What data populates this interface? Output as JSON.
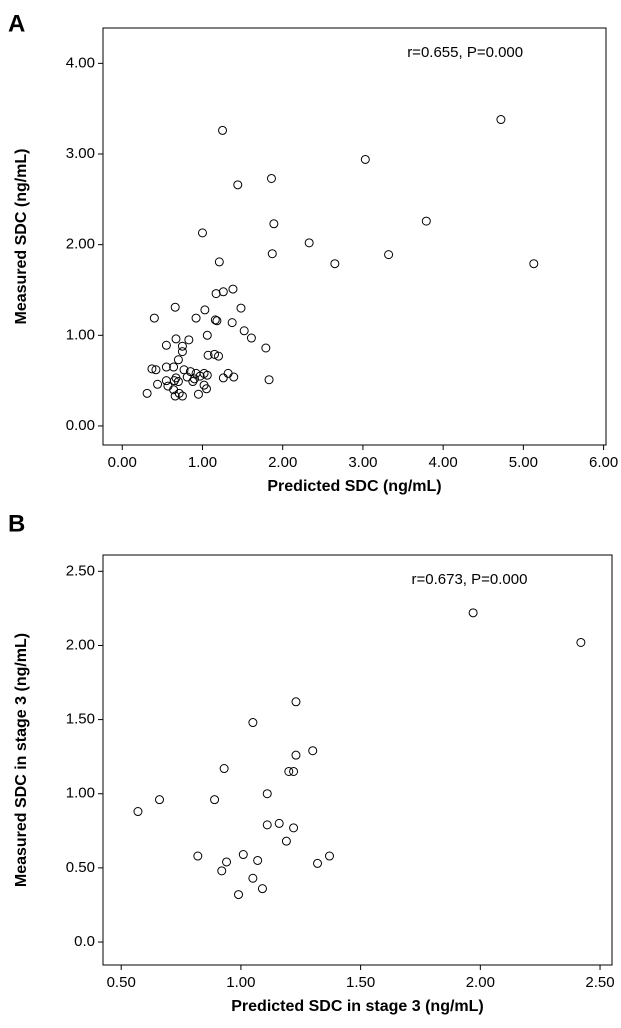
{
  "chart_data": [
    {
      "type": "scatter",
      "panel_label": "A",
      "annotation": "r=0.655, P=0.000",
      "xlabel": "Predicted SDC (ng/mL)",
      "ylabel": "Measured SDC (ng/mL)",
      "color": "#000000",
      "xlim": [
        -0.24,
        6.03
      ],
      "ylim": [
        -0.21,
        4.39
      ],
      "xticks": [
        {
          "value": 0,
          "label": "0.00"
        },
        {
          "value": 1,
          "label": "1.00"
        },
        {
          "value": 2,
          "label": "2.00"
        },
        {
          "value": 3,
          "label": "3.00"
        },
        {
          "value": 4,
          "label": "4.00"
        },
        {
          "value": 5,
          "label": "5.00"
        },
        {
          "value": 6,
          "label": "6.00"
        }
      ],
      "yticks": [
        {
          "value": 0,
          "label": "0.00"
        },
        {
          "value": 1,
          "label": "1.00"
        },
        {
          "value": 2,
          "label": "2.00"
        },
        {
          "value": 3,
          "label": "3.00"
        },
        {
          "value": 4,
          "label": "4.00"
        }
      ],
      "x": [
        1.25,
        4.72,
        3.03,
        1.44,
        1.86,
        1.0,
        1.89,
        3.79,
        2.33,
        1.87,
        3.32,
        2.65,
        5.13,
        1.21,
        1.38,
        1.26,
        1.17,
        0.4,
        0.66,
        1.03,
        1.48,
        0.92,
        1.16,
        1.18,
        1.37,
        0.67,
        0.83,
        1.52,
        1.61,
        1.06,
        0.55,
        0.75,
        1.79,
        0.75,
        1.15,
        1.2,
        1.07,
        0.7,
        0.55,
        0.64,
        0.77,
        0.37,
        0.42,
        0.85,
        0.92,
        1.02,
        1.32,
        1.39,
        1.26,
        1.06,
        0.97,
        0.67,
        0.81,
        0.9,
        0.55,
        0.7,
        0.88,
        0.65,
        1.83,
        0.44,
        0.57,
        1.02,
        1.05,
        0.64,
        0.31,
        0.71,
        0.95,
        0.66,
        0.75
      ],
      "y": [
        3.26,
        3.38,
        2.94,
        2.66,
        2.73,
        2.13,
        2.23,
        2.26,
        2.02,
        1.9,
        1.89,
        1.79,
        1.79,
        1.81,
        1.51,
        1.48,
        1.46,
        1.19,
        1.31,
        1.28,
        1.3,
        1.19,
        1.17,
        1.16,
        1.14,
        0.96,
        0.95,
        1.05,
        0.97,
        1.0,
        0.89,
        0.88,
        0.86,
        0.82,
        0.79,
        0.77,
        0.78,
        0.73,
        0.65,
        0.65,
        0.62,
        0.63,
        0.62,
        0.6,
        0.58,
        0.58,
        0.58,
        0.54,
        0.53,
        0.56,
        0.55,
        0.53,
        0.54,
        0.52,
        0.5,
        0.49,
        0.49,
        0.5,
        0.51,
        0.46,
        0.44,
        0.45,
        0.41,
        0.4,
        0.36,
        0.36,
        0.35,
        0.33,
        0.33
      ]
    },
    {
      "type": "scatter",
      "panel_label": "B",
      "annotation": "r=0.673, P=0.000",
      "xlabel": "Predicted SDC in stage 3 (ng/mL)",
      "ylabel": "Measured SDC in stage 3 (ng/mL)",
      "color": "#000000",
      "xlim": [
        0.424,
        2.55
      ],
      "ylim": [
        -0.155,
        2.61
      ],
      "xticks": [
        {
          "value": 0.5,
          "label": "0.50"
        },
        {
          "value": 1,
          "label": "1.00"
        },
        {
          "value": 1.5,
          "label": "1.50"
        },
        {
          "value": 2,
          "label": "2.00"
        },
        {
          "value": 2.5,
          "label": "2.50"
        }
      ],
      "yticks": [
        {
          "value": 0,
          "label": "0.0"
        },
        {
          "value": 0.5,
          "label": "0.50"
        },
        {
          "value": 1,
          "label": "1.00"
        },
        {
          "value": 1.5,
          "label": "1.50"
        },
        {
          "value": 2,
          "label": "2.00"
        },
        {
          "value": 2.5,
          "label": "2.50"
        }
      ],
      "x": [
        1.97,
        2.42,
        1.23,
        1.23,
        1.3,
        1.05,
        0.93,
        1.2,
        1.22,
        1.11,
        0.66,
        0.89,
        0.57,
        1.11,
        1.16,
        1.22,
        1.19,
        0.82,
        1.01,
        1.07,
        0.94,
        1.37,
        1.32,
        0.92,
        1.05,
        1.09,
        0.99
      ],
      "y": [
        2.22,
        2.02,
        1.62,
        1.26,
        1.29,
        1.48,
        1.17,
        1.15,
        1.15,
        1.0,
        0.96,
        0.96,
        0.88,
        0.79,
        0.8,
        0.77,
        0.68,
        0.58,
        0.59,
        0.55,
        0.54,
        0.58,
        0.53,
        0.48,
        0.43,
        0.36,
        0.32
      ]
    }
  ]
}
